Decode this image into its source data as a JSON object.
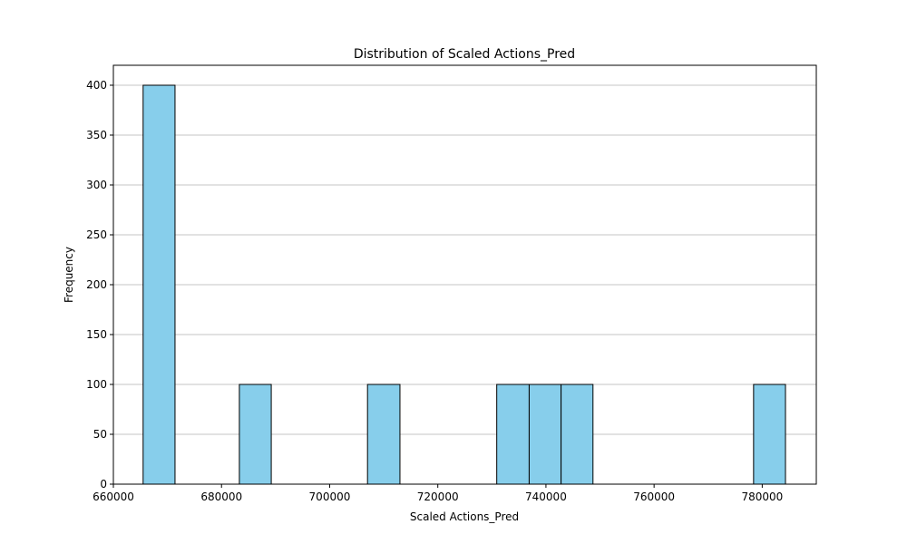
{
  "chart_data": {
    "type": "bar",
    "title": "Distribution of Scaled Actions_Pred",
    "xlabel": "Scaled Actions_Pred",
    "ylabel": "Frequency",
    "xlim": [
      660000,
      790000
    ],
    "ylim": [
      0,
      420
    ],
    "xticks": [
      660000,
      680000,
      700000,
      720000,
      740000,
      760000,
      780000
    ],
    "yticks": [
      0,
      50,
      100,
      150,
      200,
      250,
      300,
      350,
      400
    ],
    "grid": "y-axis",
    "bar_color": "#87ceeb",
    "edge_color": "#000000",
    "bins": [
      {
        "start": 665500,
        "end": 671400,
        "value": 400
      },
      {
        "start": 683300,
        "end": 689200,
        "value": 100
      },
      {
        "start": 707000,
        "end": 713000,
        "value": 100
      },
      {
        "start": 730900,
        "end": 736900,
        "value": 100
      },
      {
        "start": 736900,
        "end": 742800,
        "value": 100
      },
      {
        "start": 742800,
        "end": 748700,
        "value": 100
      },
      {
        "start": 778400,
        "end": 784300,
        "value": 100
      }
    ]
  }
}
